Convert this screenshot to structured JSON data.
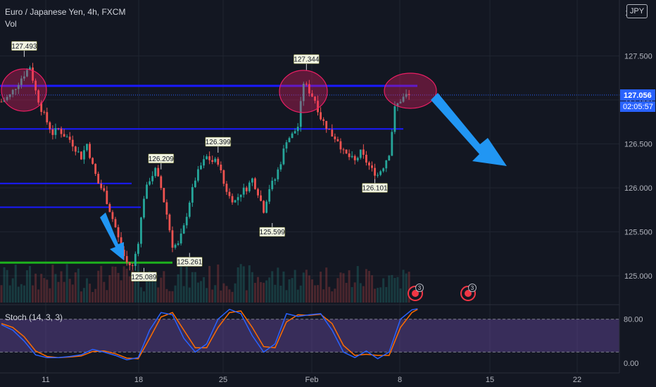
{
  "header": {
    "symbol_title": "Euro / Japanese Yen, 4h, FXCM",
    "volume_label": "Vol",
    "currency": "JPY",
    "axis_top_partial": "1"
  },
  "indicator": {
    "label": "Stoch (14, 3, 3)"
  },
  "price_axis": {
    "ticks": [
      "127.500",
      "127.000",
      "126.500",
      "126.000",
      "125.500",
      "125.000"
    ],
    "last_price": "127.056",
    "countdown": "02:05:57",
    "last_price_color": "#2962ff"
  },
  "stoch_axis": {
    "ticks": [
      "80.00",
      "0.00"
    ]
  },
  "time_axis": {
    "ticks": [
      "11",
      "18",
      "25",
      "Feb",
      "8",
      "15",
      "22"
    ]
  },
  "event_badges": [
    {
      "count": "3"
    },
    {
      "count": "3"
    }
  ],
  "colors": {
    "up": "#26a69a",
    "down": "#ef5350",
    "support": "#1a1aff",
    "green_line": "#1db11d",
    "arrow": "#2196f3",
    "stoch_k": "#2962ff",
    "stoch_d": "#ff6d00",
    "band": "#7e57c2"
  },
  "chart_data": {
    "type": "candlestick",
    "title": "Euro / Japanese Yen, 4h, FXCM",
    "x_ticks": [
      "11",
      "18",
      "25",
      "Feb",
      "8",
      "15",
      "22"
    ],
    "y_ticks": [
      125.0,
      125.5,
      126.0,
      126.5,
      127.0,
      127.5
    ],
    "close_path": [
      {
        "x": 0,
        "y": 126.98
      },
      {
        "x": 3,
        "y": 127.05
      },
      {
        "x": 7,
        "y": 127.25
      },
      {
        "x": 10,
        "y": 127.38
      },
      {
        "x": 12,
        "y": 127.1
      },
      {
        "x": 14,
        "y": 126.9
      },
      {
        "x": 16,
        "y": 126.75
      },
      {
        "x": 18,
        "y": 126.62
      },
      {
        "x": 20,
        "y": 126.67
      },
      {
        "x": 22,
        "y": 126.6
      },
      {
        "x": 24,
        "y": 126.55
      },
      {
        "x": 26,
        "y": 126.45
      },
      {
        "x": 28,
        "y": 126.35
      },
      {
        "x": 30,
        "y": 126.5
      },
      {
        "x": 32,
        "y": 126.25
      },
      {
        "x": 34,
        "y": 126.05
      },
      {
        "x": 36,
        "y": 125.95
      },
      {
        "x": 38,
        "y": 125.75
      },
      {
        "x": 40,
        "y": 125.55
      },
      {
        "x": 42,
        "y": 125.3
      },
      {
        "x": 44,
        "y": 125.15
      },
      {
        "x": 46,
        "y": 125.1
      },
      {
        "x": 48,
        "y": 125.4
      },
      {
        "x": 50,
        "y": 125.9
      },
      {
        "x": 52,
        "y": 126.1
      },
      {
        "x": 54,
        "y": 126.2
      },
      {
        "x": 56,
        "y": 126.0
      },
      {
        "x": 58,
        "y": 125.7
      },
      {
        "x": 60,
        "y": 125.35
      },
      {
        "x": 62,
        "y": 125.35
      },
      {
        "x": 64,
        "y": 125.55
      },
      {
        "x": 66,
        "y": 125.85
      },
      {
        "x": 68,
        "y": 126.1
      },
      {
        "x": 70,
        "y": 126.25
      },
      {
        "x": 72,
        "y": 126.35
      },
      {
        "x": 74,
        "y": 126.3
      },
      {
        "x": 76,
        "y": 126.3
      },
      {
        "x": 78,
        "y": 126.05
      },
      {
        "x": 80,
        "y": 125.9
      },
      {
        "x": 82,
        "y": 125.85
      },
      {
        "x": 84,
        "y": 125.95
      },
      {
        "x": 86,
        "y": 126.0
      },
      {
        "x": 88,
        "y": 126.1
      },
      {
        "x": 90,
        "y": 125.95
      },
      {
        "x": 92,
        "y": 125.75
      },
      {
        "x": 94,
        "y": 126.0
      },
      {
        "x": 96,
        "y": 126.1
      },
      {
        "x": 98,
        "y": 126.3
      },
      {
        "x": 100,
        "y": 126.55
      },
      {
        "x": 102,
        "y": 126.6
      },
      {
        "x": 104,
        "y": 126.7
      },
      {
        "x": 106,
        "y": 127.2
      },
      {
        "x": 108,
        "y": 127.1
      },
      {
        "x": 110,
        "y": 127.0
      },
      {
        "x": 112,
        "y": 126.8
      },
      {
        "x": 114,
        "y": 126.7
      },
      {
        "x": 116,
        "y": 126.6
      },
      {
        "x": 118,
        "y": 126.55
      },
      {
        "x": 120,
        "y": 126.4
      },
      {
        "x": 122,
        "y": 126.35
      },
      {
        "x": 124,
        "y": 126.3
      },
      {
        "x": 126,
        "y": 126.4
      },
      {
        "x": 128,
        "y": 126.3
      },
      {
        "x": 130,
        "y": 126.2
      },
      {
        "x": 132,
        "y": 126.15
      },
      {
        "x": 134,
        "y": 126.25
      },
      {
        "x": 136,
        "y": 126.4
      },
      {
        "x": 138,
        "y": 126.9
      },
      {
        "x": 140,
        "y": 127.0
      },
      {
        "x": 142,
        "y": 127.05
      }
    ],
    "price_labels": [
      {
        "text": "127.493",
        "x": 8,
        "y": 127.49,
        "pos": "above"
      },
      {
        "text": "127.344",
        "x": 107,
        "y": 127.34,
        "pos": "above"
      },
      {
        "text": "126.399",
        "x": 76,
        "y": 126.4,
        "pos": "above"
      },
      {
        "text": "126.209",
        "x": 56,
        "y": 126.21,
        "pos": "above"
      },
      {
        "text": "125.089",
        "x": 50,
        "y": 125.09,
        "pos": "below"
      },
      {
        "text": "125.261",
        "x": 66,
        "y": 125.26,
        "pos": "below"
      },
      {
        "text": "125.599",
        "x": 95,
        "y": 125.6,
        "pos": "below"
      },
      {
        "text": "126.101",
        "x": 131,
        "y": 126.1,
        "pos": "below"
      }
    ],
    "stoch_k": [
      {
        "x": 0,
        "y": 70
      },
      {
        "x": 4,
        "y": 60
      },
      {
        "x": 8,
        "y": 40
      },
      {
        "x": 12,
        "y": 15
      },
      {
        "x": 16,
        "y": 10
      },
      {
        "x": 20,
        "y": 10
      },
      {
        "x": 24,
        "y": 12
      },
      {
        "x": 28,
        "y": 15
      },
      {
        "x": 32,
        "y": 25
      },
      {
        "x": 36,
        "y": 20
      },
      {
        "x": 40,
        "y": 14
      },
      {
        "x": 44,
        "y": 6
      },
      {
        "x": 48,
        "y": 10
      },
      {
        "x": 52,
        "y": 60
      },
      {
        "x": 56,
        "y": 92
      },
      {
        "x": 60,
        "y": 88
      },
      {
        "x": 64,
        "y": 45
      },
      {
        "x": 68,
        "y": 20
      },
      {
        "x": 72,
        "y": 35
      },
      {
        "x": 76,
        "y": 80
      },
      {
        "x": 80,
        "y": 98
      },
      {
        "x": 84,
        "y": 90
      },
      {
        "x": 88,
        "y": 50
      },
      {
        "x": 92,
        "y": 20
      },
      {
        "x": 96,
        "y": 35
      },
      {
        "x": 100,
        "y": 90
      },
      {
        "x": 104,
        "y": 85
      },
      {
        "x": 108,
        "y": 88
      },
      {
        "x": 112,
        "y": 90
      },
      {
        "x": 116,
        "y": 60
      },
      {
        "x": 120,
        "y": 20
      },
      {
        "x": 124,
        "y": 10
      },
      {
        "x": 128,
        "y": 22
      },
      {
        "x": 132,
        "y": 8
      },
      {
        "x": 136,
        "y": 20
      },
      {
        "x": 140,
        "y": 80
      },
      {
        "x": 144,
        "y": 97
      },
      {
        "x": 146,
        "y": 99
      }
    ],
    "stoch_d": [
      {
        "x": 0,
        "y": 72
      },
      {
        "x": 4,
        "y": 65
      },
      {
        "x": 8,
        "y": 48
      },
      {
        "x": 12,
        "y": 22
      },
      {
        "x": 16,
        "y": 12
      },
      {
        "x": 20,
        "y": 10
      },
      {
        "x": 24,
        "y": 11
      },
      {
        "x": 28,
        "y": 13
      },
      {
        "x": 32,
        "y": 21
      },
      {
        "x": 36,
        "y": 22
      },
      {
        "x": 40,
        "y": 17
      },
      {
        "x": 44,
        "y": 9
      },
      {
        "x": 48,
        "y": 8
      },
      {
        "x": 52,
        "y": 45
      },
      {
        "x": 56,
        "y": 84
      },
      {
        "x": 60,
        "y": 92
      },
      {
        "x": 64,
        "y": 60
      },
      {
        "x": 68,
        "y": 28
      },
      {
        "x": 72,
        "y": 28
      },
      {
        "x": 76,
        "y": 65
      },
      {
        "x": 80,
        "y": 92
      },
      {
        "x": 84,
        "y": 95
      },
      {
        "x": 88,
        "y": 65
      },
      {
        "x": 92,
        "y": 30
      },
      {
        "x": 96,
        "y": 28
      },
      {
        "x": 100,
        "y": 75
      },
      {
        "x": 104,
        "y": 88
      },
      {
        "x": 108,
        "y": 87
      },
      {
        "x": 112,
        "y": 89
      },
      {
        "x": 116,
        "y": 72
      },
      {
        "x": 120,
        "y": 32
      },
      {
        "x": 124,
        "y": 14
      },
      {
        "x": 128,
        "y": 16
      },
      {
        "x": 132,
        "y": 14
      },
      {
        "x": 136,
        "y": 14
      },
      {
        "x": 140,
        "y": 65
      },
      {
        "x": 144,
        "y": 92
      },
      {
        "x": 146,
        "y": 98
      }
    ],
    "stoch_band": [
      20,
      80
    ],
    "annotations": {
      "blue_lines": [
        127.16,
        126.67,
        126.05,
        125.78
      ],
      "green_line": 125.15
    }
  }
}
